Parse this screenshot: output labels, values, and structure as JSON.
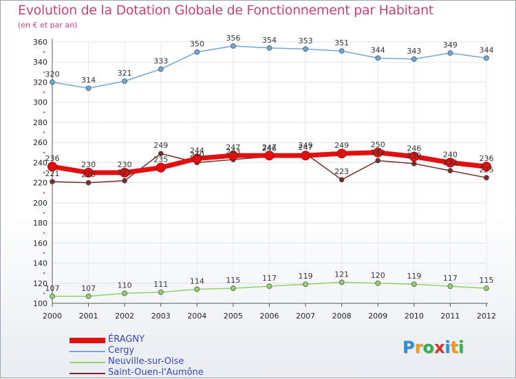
{
  "title": "Evolution de la Dotation Globale de Fonctionnement par Habitant",
  "subtitle": "(en € et par an)",
  "logo": {
    "text": "Proxiti",
    "letters": [
      "P",
      "r",
      "o",
      "x",
      "i",
      "t",
      "i"
    ],
    "colors": [
      "#2a8fd8",
      "#f39a1a",
      "#2bb24c",
      "#d6342f",
      "#2a8fd8",
      "#f39a1a",
      "#2bb24c"
    ]
  },
  "chart_data": {
    "type": "line",
    "title": "Evolution de la Dotation Globale de Fonctionnement par Habitant",
    "subtitle": "(en € et par an)",
    "x": [
      "2000",
      "2001",
      "2002",
      "2003",
      "2004",
      "2005",
      "2006",
      "2007",
      "2008",
      "2009",
      "2010",
      "2011",
      "2012"
    ],
    "ylim": [
      100,
      360
    ],
    "yticks": [
      100,
      120,
      140,
      160,
      180,
      200,
      220,
      240,
      260,
      280,
      300,
      320,
      340,
      360
    ],
    "grid": true,
    "legend_position": "bottom-left",
    "series": [
      {
        "name": "Saint-Ouen-l'Aumône",
        "color": "#7a2a2a",
        "values": [
          221,
          220,
          222,
          249,
          240,
          243,
          246,
          249,
          223,
          242,
          239,
          232,
          225
        ],
        "labels": [
          "221",
          "220",
          "222",
          "249",
          "240",
          "243",
          "246",
          "249",
          "223",
          "242",
          "239",
          "232",
          "225"
        ]
      },
      {
        "name": "Neuville-sur-Oise",
        "color": "#8fd16a",
        "values": [
          107,
          107,
          110,
          111,
          114,
          115,
          117,
          119,
          121,
          120,
          119,
          117,
          115
        ],
        "labels": [
          "107",
          "107",
          "110",
          "111",
          "114",
          "115",
          "117",
          "119",
          "121",
          "120",
          "119",
          "117",
          "115"
        ]
      },
      {
        "name": "Cergy",
        "color": "#6fa6d6",
        "values": [
          320,
          314,
          321,
          333,
          350,
          356,
          354,
          353,
          351,
          344,
          343,
          349,
          344
        ],
        "labels": [
          "320",
          "314",
          "321",
          "333",
          "350",
          "356",
          "354",
          "353",
          "351",
          "344",
          "343",
          "349",
          "344"
        ]
      },
      {
        "name": "ÉRAGNY",
        "color": "#e01010",
        "values": [
          236,
          230,
          230,
          235,
          244,
          247,
          247,
          247,
          249,
          250,
          246,
          240,
          236
        ],
        "labels": [
          "236",
          "230",
          "230",
          "235",
          "244",
          "247",
          "247",
          "247",
          "249",
          "250",
          "246",
          "240",
          "236"
        ]
      }
    ],
    "legend_order": [
      "ÉRAGNY",
      "Cergy",
      "Neuville-sur-Oise",
      "Saint-Ouen-l'Aumône"
    ]
  }
}
